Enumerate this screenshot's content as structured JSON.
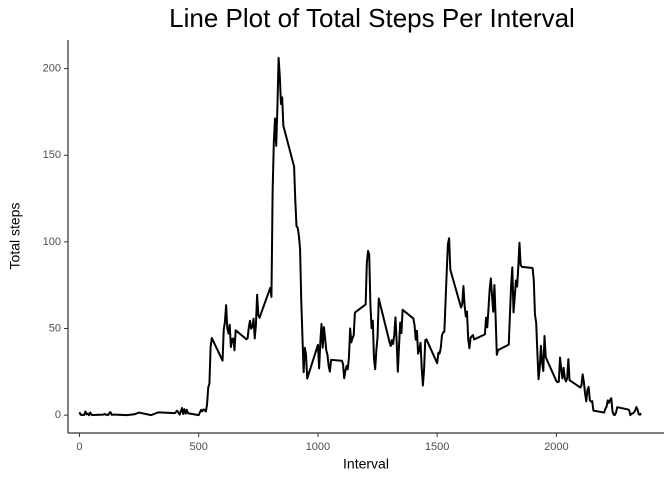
{
  "chart_data": {
    "type": "line",
    "title": "Line Plot of Total Steps Per Interval",
    "x_label": "Interval",
    "y_label": "Total steps",
    "color": "#000000",
    "xlim": [
      -48,
      2451
    ],
    "ylim": [
      -10.3,
      216.5
    ],
    "xticks": [
      0,
      500,
      1000,
      1500,
      2000
    ],
    "yticks": [
      0,
      50,
      100,
      150,
      200
    ],
    "grid": false,
    "x": [
      0,
      5,
      10,
      15,
      20,
      25,
      30,
      35,
      40,
      45,
      50,
      55,
      100,
      105,
      110,
      115,
      120,
      125,
      130,
      135,
      140,
      145,
      150,
      200,
      230,
      250,
      300,
      330,
      400,
      410,
      420,
      430,
      435,
      440,
      445,
      450,
      455,
      500,
      505,
      510,
      515,
      520,
      525,
      530,
      535,
      540,
      545,
      550,
      555,
      600,
      605,
      610,
      615,
      620,
      625,
      630,
      635,
      640,
      645,
      650,
      655,
      700,
      705,
      710,
      715,
      720,
      725,
      730,
      735,
      740,
      745,
      750,
      755,
      800,
      805,
      810,
      815,
      820,
      825,
      830,
      835,
      840,
      845,
      850,
      855,
      900,
      905,
      910,
      915,
      920,
      925,
      930,
      935,
      940,
      945,
      950,
      955,
      1000,
      1005,
      1010,
      1015,
      1020,
      1025,
      1030,
      1035,
      1040,
      1045,
      1050,
      1055,
      1100,
      1105,
      1110,
      1115,
      1120,
      1125,
      1130,
      1135,
      1140,
      1145,
      1150,
      1155,
      1200,
      1205,
      1210,
      1215,
      1220,
      1225,
      1230,
      1235,
      1240,
      1245,
      1250,
      1255,
      1300,
      1305,
      1310,
      1315,
      1320,
      1325,
      1330,
      1335,
      1340,
      1345,
      1350,
      1355,
      1400,
      1405,
      1410,
      1415,
      1420,
      1425,
      1430,
      1435,
      1440,
      1445,
      1450,
      1455,
      1500,
      1505,
      1510,
      1515,
      1520,
      1525,
      1530,
      1535,
      1540,
      1545,
      1550,
      1555,
      1600,
      1605,
      1610,
      1615,
      1620,
      1625,
      1630,
      1635,
      1640,
      1645,
      1650,
      1655,
      1700,
      1705,
      1710,
      1715,
      1720,
      1725,
      1730,
      1735,
      1740,
      1745,
      1750,
      1755,
      1800,
      1805,
      1810,
      1815,
      1820,
      1825,
      1830,
      1835,
      1840,
      1845,
      1850,
      1855,
      1900,
      1905,
      1910,
      1915,
      1920,
      1925,
      1930,
      1935,
      1940,
      1945,
      1950,
      1955,
      2000,
      2005,
      2010,
      2015,
      2020,
      2025,
      2030,
      2035,
      2040,
      2045,
      2050,
      2055,
      2100,
      2105,
      2110,
      2115,
      2120,
      2125,
      2130,
      2135,
      2140,
      2145,
      2150,
      2155,
      2200,
      2205,
      2210,
      2215,
      2220,
      2225,
      2230,
      2235,
      2240,
      2245,
      2250,
      2255,
      2300,
      2305,
      2310,
      2315,
      2320,
      2325,
      2330,
      2335,
      2340,
      2345,
      2350,
      2355
    ],
    "values": [
      1.7,
      0.3,
      0.1,
      0.2,
      0.1,
      2.1,
      0.5,
      0.9,
      0,
      1.5,
      0.3,
      0.1,
      0.3,
      0.7,
      0.2,
      0.3,
      0,
      1.1,
      1.8,
      0.2,
      0.2,
      0.4,
      0.3,
      0,
      0.5,
      1.5,
      0,
      1.6,
      1.2,
      2.6,
      0.3,
      4.1,
      0.7,
      3.5,
      0.8,
      3.1,
      1.1,
      0,
      1.6,
      3,
      2.2,
      3.3,
      3,
      2.1,
      6.1,
      16,
      18.3,
      39.5,
      44.5,
      31.5,
      49.3,
      53.8,
      63.5,
      50,
      47.1,
      52.2,
      39.3,
      44,
      44.2,
      37.4,
      49,
      43.8,
      44.4,
      50.5,
      54.5,
      49.9,
      51,
      55.7,
      44.3,
      52.3,
      69.5,
      57.8,
      56.2,
      73.4,
      68.2,
      129.4,
      157.5,
      171.2,
      155.4,
      177.3,
      206.2,
      195.9,
      179.6,
      183.4,
      167,
      143.5,
      124,
      109.1,
      108.1,
      103.7,
      96,
      66.2,
      45.2,
      24.8,
      38.8,
      35,
      21.1,
      40.6,
      27,
      42.4,
      52.7,
      38.9,
      50.8,
      44.3,
      37.4,
      34.7,
      28.3,
      25.1,
      31.9,
      31.4,
      29.7,
      21.3,
      25.5,
      28.4,
      26.5,
      33.4,
      50,
      42,
      44.6,
      46,
      59.2,
      63.9,
      87.7,
      94.8,
      92.8,
      63.4,
      50.2,
      54.5,
      32.4,
      26.5,
      37.7,
      45.1,
      67.3,
      42.3,
      39.9,
      43.3,
      41,
      46.2,
      56.4,
      42.8,
      25.1,
      40,
      53.5,
      47.3,
      60.8,
      55.8,
      52,
      43.6,
      48.7,
      35.5,
      37.5,
      41.8,
      27.5,
      17.1,
      26.2,
      43.3,
      43.7,
      30,
      36.1,
      35.5,
      38.8,
      46,
      47.8,
      48.1,
      65.3,
      82.9,
      98.7,
      102.1,
      84,
      62.1,
      64.1,
      74.5,
      63.2,
      56.9,
      59.8,
      43.9,
      38.6,
      44.7,
      45.5,
      46.2,
      43.7,
      46.6,
      56.3,
      50.7,
      61.2,
      72.7,
      78.9,
      68.9,
      59.7,
      75.1,
      56.5,
      34.8,
      37.5,
      40.7,
      58,
      74.7,
      85.3,
      59.3,
      67.8,
      77.7,
      74.2,
      85.3,
      99.5,
      86.6,
      85.6,
      84.9,
      77.8,
      58,
      53.4,
      36.3,
      20.7,
      27.4,
      40,
      30.2,
      25.5,
      45.7,
      33.5,
      19.6,
      19,
      19.3,
      33.3,
      26.8,
      21.2,
      27.3,
      21.3,
      19.5,
      21.3,
      32.3,
      20.2,
      15.9,
      17.2,
      23.5,
      19.2,
      12.5,
      8,
      14.7,
      16.3,
      8.7,
      7.8,
      8.1,
      2.6,
      1.5,
      3.7,
      4.8,
      8.5,
      7.1,
      8.7,
      9.8,
      2.2,
      0.3,
      0.1,
      1.6,
      4.6,
      3.3,
      2.8,
      0,
      0.8,
      1,
      1.6,
      2.6,
      4.7,
      3.3,
      0.6,
      0.2,
      1.1
    ]
  }
}
